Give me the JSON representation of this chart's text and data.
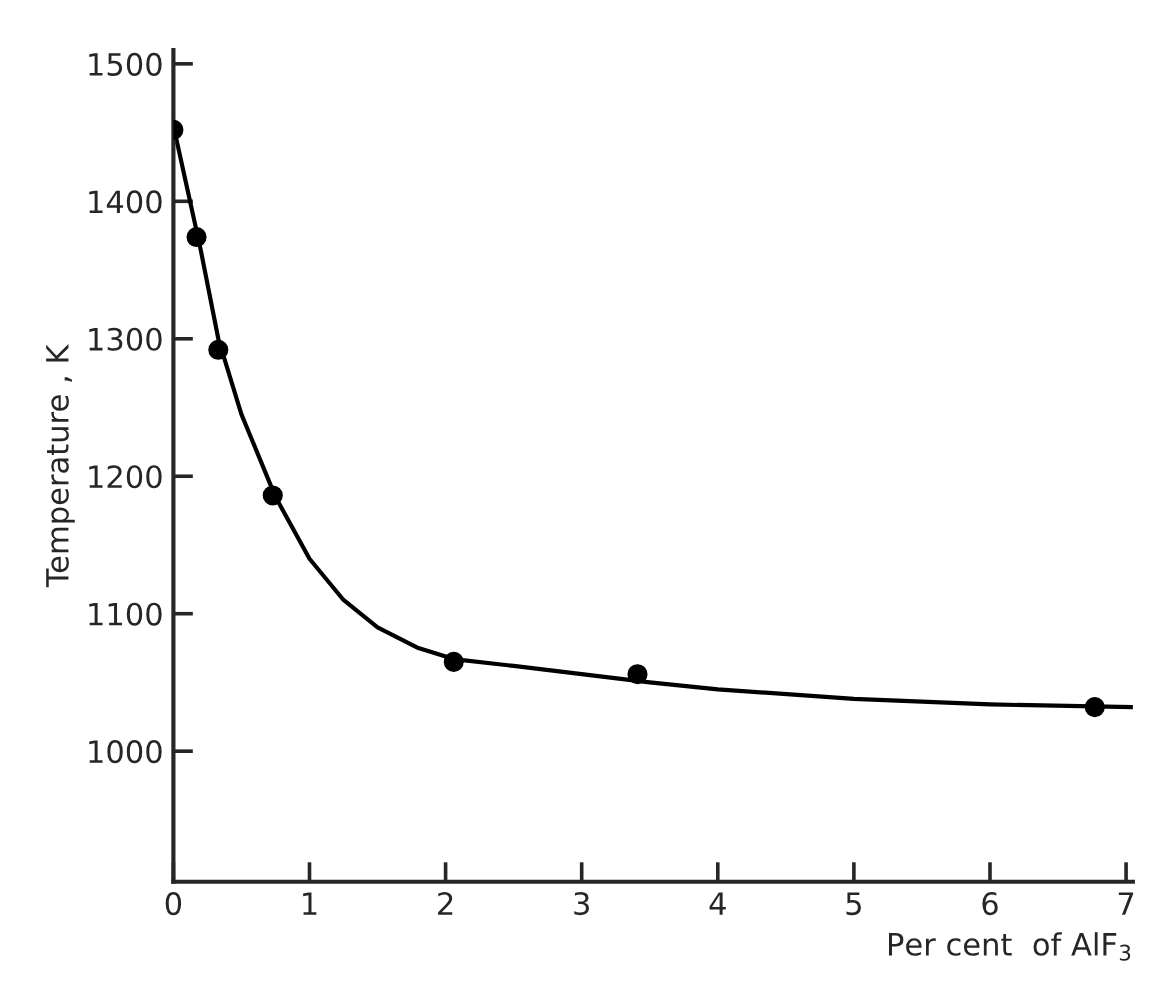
{
  "chart_data": {
    "type": "scatter",
    "xlabel": "Per cent  of AlF$_{3}$",
    "ylabel": "Temperature , K",
    "xlim": [
      0,
      7.05
    ],
    "ylim": [
      905,
      1510
    ],
    "xticks": [
      0,
      1,
      2,
      3,
      4,
      5,
      6,
      7
    ],
    "yticks": [
      1000,
      1100,
      1200,
      1300,
      1400,
      1500
    ],
    "grid": false,
    "marker": "circle",
    "series": [
      {
        "color": "#000000",
        "x": [
          0,
          0.17,
          0.33,
          0.73,
          2.06,
          3.41,
          6.77
        ],
        "values": [
          1452,
          1374,
          1292,
          1186,
          1065,
          1056,
          1032
        ]
      },
      {
        "type": "line",
        "color": "#000000",
        "marker": "none",
        "line_style": "solid",
        "x": [
          0,
          0.1,
          0.2,
          0.33,
          0.5,
          0.75,
          1,
          1.25,
          1.5,
          1.8,
          2.06,
          2.5,
          3,
          3.5,
          4,
          5,
          6,
          7.05
        ],
        "values": [
          1455,
          1410,
          1365,
          1300,
          1245,
          1185,
          1140,
          1110,
          1090,
          1075,
          1067,
          1062,
          1056,
          1050,
          1045,
          1038,
          1034,
          1032
        ]
      }
    ]
  }
}
